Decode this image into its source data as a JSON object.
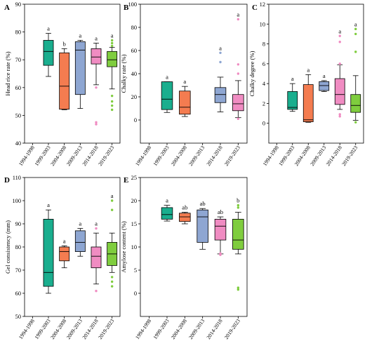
{
  "chart_data": [
    {
      "panel": "A",
      "type": "box",
      "ylabel": "Head rice rate (%)",
      "ylim": [
        40,
        90
      ],
      "yticks": [
        40,
        50,
        60,
        70,
        80,
        90
      ],
      "categories": [
        "1994-1998",
        "1999-2003",
        "2004-2008",
        "2009-2013",
        "2014-2018",
        "2019-2023"
      ],
      "boxes": [
        null,
        {
          "color": "#1aae8e",
          "whisker_low": 64,
          "q1": 68,
          "median": 73,
          "q3": 77,
          "whisker_high": 79.5,
          "outliers": [],
          "letter": "a"
        },
        {
          "color": "#f47c50",
          "whisker_low": 52,
          "q1": 52.2,
          "median": 60.5,
          "q3": 72.5,
          "whisker_high": 74,
          "outliers": [],
          "letter": "b"
        },
        {
          "color": "#8ea6d2",
          "whisker_low": 52.5,
          "q1": 57.5,
          "median": 73.5,
          "q3": 76.5,
          "whisker_high": 77,
          "outliers": [],
          "letter": "a"
        },
        {
          "color": "#f08cc2",
          "whisker_low": 61,
          "q1": 68.5,
          "median": 71,
          "q3": 74,
          "whisker_high": 76,
          "outliers": [
            46.8,
            47.5,
            60
          ],
          "letter": "a"
        },
        {
          "color": "#7fcd3e",
          "whisker_low": 59.5,
          "q1": 67.5,
          "median": 70,
          "q3": 73,
          "whisker_high": 74.5,
          "outliers": [
            52,
            53.5,
            55,
            57,
            75,
            76,
            77
          ],
          "letter": "a"
        }
      ]
    },
    {
      "panel": "B",
      "type": "box",
      "ylabel": "Chalky rate (%)",
      "ylim": [
        -20,
        100
      ],
      "yticks": [
        0,
        20,
        40,
        60,
        80,
        100
      ],
      "categories": [
        "1994-1998",
        "1999-2003",
        "2004-2008",
        "2009-2013",
        "2014-2018",
        "2019-2023"
      ],
      "boxes": [
        null,
        {
          "color": "#1aae8e",
          "whisker_low": 6.5,
          "q1": 9,
          "median": 18,
          "q3": 33,
          "whisker_high": 33,
          "outliers": [],
          "letter": "a"
        },
        {
          "color": "#f47c50",
          "whisker_low": 3,
          "q1": 5,
          "median": 11,
          "q3": 25,
          "whisker_high": 29,
          "outliers": [],
          "letter": "a"
        },
        {
          "color": "#8ea6d2",
          "whisker_low": null,
          "q1": null,
          "median": null,
          "q3": null,
          "whisker_high": null,
          "outliers": [],
          "letter": ""
        },
        {
          "color": "#8ea6d2",
          "whisker_low": 7,
          "q1": 15,
          "median": 22,
          "q3": 28,
          "whisker_high": 37,
          "outliers": [
            50,
            58
          ],
          "letter": "a"
        },
        {
          "color": "#f08cc2",
          "whisker_low": 2,
          "q1": 8,
          "median": 14,
          "q3": 22,
          "whisker_high": 34,
          "outliers": [
            1,
            40,
            48,
            87
          ],
          "letter": "a"
        }
      ]
    },
    {
      "panel": "C",
      "type": "box",
      "ylabel": "Chalky degree (%)",
      "ylim": [
        -2,
        12
      ],
      "yticks": [
        0,
        2,
        4,
        6,
        8,
        10,
        12
      ],
      "categories": [
        "1994-1998",
        "1999-2003",
        "2004-2008",
        "2009-2013",
        "2014-2018",
        "2019-2023"
      ],
      "boxes": [
        null,
        {
          "color": "#1aae8e",
          "whisker_low": 1.2,
          "q1": 1.4,
          "median": 1.6,
          "q3": 3.2,
          "whisker_high": 4,
          "outliers": [],
          "letter": "a"
        },
        {
          "color": "#f47c50",
          "whisker_low": 0.1,
          "q1": 0.15,
          "median": 0.35,
          "q3": 3.9,
          "whisker_high": 4.9,
          "outliers": [],
          "letter": "a"
        },
        {
          "color": "#8ea6d2",
          "whisker_low": 3.2,
          "q1": 3.3,
          "median": 3.8,
          "q3": 4.2,
          "whisker_high": 4.3,
          "outliers": [],
          "letter": "a"
        },
        {
          "color": "#f08cc2",
          "whisker_low": 1.4,
          "q1": 1.9,
          "median": 2.9,
          "q3": 4.5,
          "whisker_high": 5.9,
          "outliers": [
            0.7,
            0.9,
            6,
            8.2,
            8.8
          ],
          "letter": "a"
        },
        {
          "color": "#7fcd3e",
          "whisker_low": 0.3,
          "q1": 1.1,
          "median": 1.8,
          "q3": 2.9,
          "whisker_high": 4.8,
          "outliers": [
            0.1,
            7.2,
            9,
            9.5
          ],
          "letter": "a"
        }
      ]
    },
    {
      "panel": "D",
      "type": "box",
      "ylabel": "Gel consistency (mm)",
      "ylim": [
        50,
        110
      ],
      "yticks": [
        50,
        60,
        70,
        80,
        90,
        100,
        110
      ],
      "categories": [
        "1994-1998",
        "1999-2003",
        "2004-2008",
        "2009-2013",
        "2014-2018",
        "2019-2023"
      ],
      "boxes": [
        null,
        {
          "color": "#1aae8e",
          "whisker_low": 60,
          "q1": 63,
          "median": 69,
          "q3": 92,
          "whisker_high": 96,
          "outliers": [],
          "letter": "a"
        },
        {
          "color": "#f47c50",
          "whisker_low": 71,
          "q1": 74,
          "median": 78,
          "q3": 80,
          "whisker_high": 80.5,
          "outliers": [],
          "letter": "a"
        },
        {
          "color": "#8ea6d2",
          "whisker_low": 76,
          "q1": 78,
          "median": 82,
          "q3": 87,
          "whisker_high": 88,
          "outliers": [],
          "letter": "a"
        },
        {
          "color": "#f08cc2",
          "whisker_low": 64,
          "q1": 71,
          "median": 76,
          "q3": 80,
          "whisker_high": 86,
          "outliers": [
            61,
            88
          ],
          "letter": "a"
        },
        {
          "color": "#7fcd3e",
          "whisker_low": 69,
          "q1": 72,
          "median": 77,
          "q3": 82,
          "whisker_high": 86,
          "outliers": [
            63,
            65,
            67,
            96,
            100
          ],
          "letter": "a"
        }
      ]
    },
    {
      "panel": "E",
      "type": "box",
      "ylabel": "Amylose content (%)",
      "ylim": [
        -5,
        25
      ],
      "yticks": [
        0,
        5,
        10,
        15,
        20,
        25
      ],
      "categories": [
        "1994-1998",
        "1999-2003",
        "2004-2008",
        "2009-2013",
        "2014-2018",
        "2019-2023"
      ],
      "boxes": [
        null,
        {
          "color": "#1aae8e",
          "whisker_low": 15.6,
          "q1": 16,
          "median": 17,
          "q3": 18.5,
          "whisker_high": 19,
          "outliers": [],
          "letter": "a"
        },
        {
          "color": "#f47c50",
          "whisker_low": 15,
          "q1": 15.5,
          "median": 16.5,
          "q3": 17.3,
          "whisker_high": 17.5,
          "outliers": [],
          "letter": "ab"
        },
        {
          "color": "#8ea6d2",
          "whisker_low": 9.5,
          "q1": 11,
          "median": 16.5,
          "q3": 18,
          "whisker_high": 18.3,
          "outliers": [],
          "letter": "ab"
        },
        {
          "color": "#f08cc2",
          "whisker_low": 8.5,
          "q1": 11.5,
          "median": 14.5,
          "q3": 16,
          "whisker_high": 16.5,
          "outliers": [
            8.3,
            8.6
          ],
          "letter": "ab"
        },
        {
          "color": "#7fcd3e",
          "whisker_low": 8.5,
          "q1": 9.5,
          "median": 11.5,
          "q3": 16,
          "whisker_high": 17.5,
          "outliers": [
            0.8,
            1.2,
            18.5,
            19
          ],
          "letter": "b"
        }
      ]
    }
  ]
}
